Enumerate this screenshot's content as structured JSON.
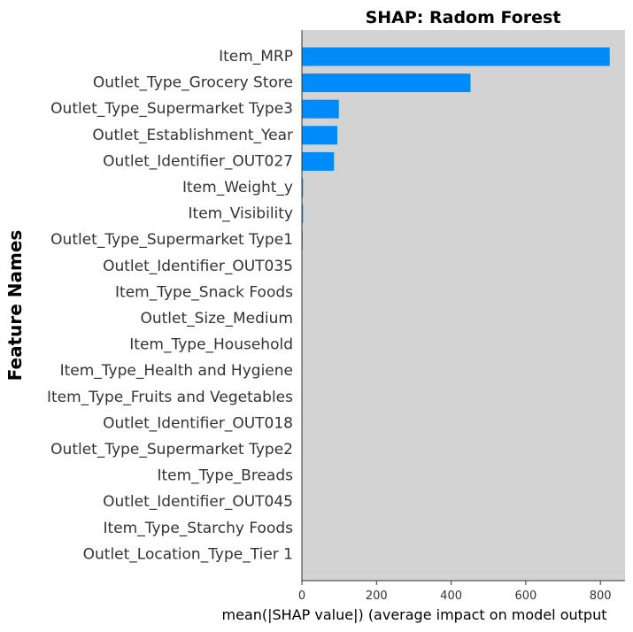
{
  "chart_data": {
    "type": "bar",
    "orientation": "horizontal",
    "title": "SHAP: Radom Forest",
    "xlabel": "mean(|SHAP value|) (average impact on model output",
    "ylabel": "Feature Names",
    "xlim": [
      0,
      866
    ],
    "xticks": [
      0,
      200,
      400,
      600,
      800
    ],
    "grid": false,
    "bar_color": "#008bfb",
    "background_color": "#d3d3d3",
    "categories": [
      "Item_MRP",
      "Outlet_Type_Grocery Store",
      "Outlet_Type_Supermarket Type3",
      "Outlet_Establishment_Year",
      "Outlet_Identifier_OUT027",
      "Item_Weight_y",
      "Item_Visibility",
      "Outlet_Type_Supermarket Type1",
      "Outlet_Identifier_OUT035",
      "Item_Type_Snack Foods",
      "Outlet_Size_Medium",
      "Item_Type_Household",
      "Item_Type_Health and Hygiene",
      "Item_Type_Fruits and Vegetables",
      "Outlet_Identifier_OUT018",
      "Outlet_Type_Supermarket Type2",
      "Item_Type_Breads",
      "Outlet_Identifier_OUT045",
      "Item_Type_Starchy Foods",
      "Outlet_Location_Type_Tier 1"
    ],
    "values": [
      825,
      452,
      99,
      95,
      86,
      3,
      3,
      2,
      0.5,
      0.4,
      0.3,
      0.3,
      0.3,
      0.3,
      0.2,
      0.2,
      0.2,
      0.2,
      0.1,
      0.1
    ]
  }
}
